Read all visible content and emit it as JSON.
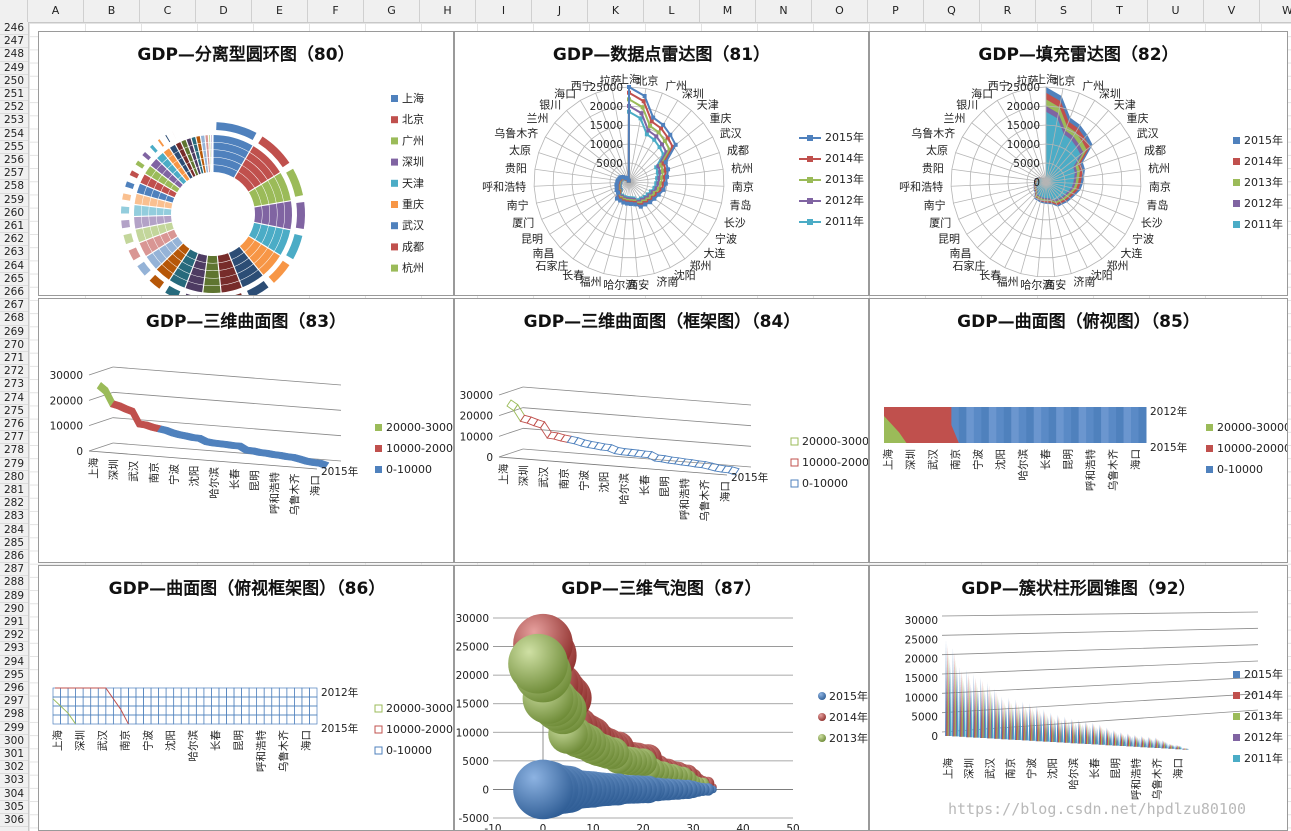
{
  "sheet": {
    "columns": [
      "A",
      "B",
      "C",
      "D",
      "E",
      "F",
      "G",
      "H",
      "I",
      "J",
      "K",
      "L",
      "M",
      "N",
      "O",
      "P",
      "Q",
      "R",
      "S",
      "T",
      "U",
      "V",
      "W"
    ],
    "rows_start": 246,
    "rows_end": 306
  },
  "watermark": "https://blog.csdn.net/hpdlzu80100",
  "colors": {
    "s2015": "#4f81bd",
    "s2014": "#c0504d",
    "s2013": "#9bbb59",
    "s2012": "#8064a2",
    "s2011": "#4bacc6",
    "s6": "#f79646"
  },
  "chart_data": [
    {
      "id": "c80",
      "type": "pie",
      "subtype": "separated-doughnut",
      "title": "GDP—分离型圆环图（80）",
      "legend_position": "right",
      "legend": [
        "上海",
        "北京",
        "广州",
        "深圳",
        "天津",
        "重庆",
        "武汉",
        "成都",
        "杭州"
      ]
    },
    {
      "id": "c81",
      "type": "line",
      "subtype": "radar-markers",
      "title": "GDP—数据点雷达图（81）",
      "categories": [
        "上海",
        "北京",
        "广州",
        "深圳",
        "天津",
        "重庆",
        "武汉",
        "成都",
        "杭州",
        "南京",
        "青岛",
        "长沙",
        "宁波",
        "大连",
        "郑州",
        "沈阳",
        "济南",
        "西安",
        "哈尔滨",
        "福州",
        "长春",
        "石家庄",
        "南昌",
        "昆明",
        "厦门",
        "南宁",
        "呼和浩特",
        "贵阳",
        "太原",
        "乌鲁木齐",
        "兰州",
        "银川",
        "海口",
        "西宁",
        "拉萨"
      ],
      "axis_ticks": [
        "0",
        "5000",
        "10000",
        "15000",
        "20000",
        "25000"
      ],
      "legend_position": "right",
      "series": [
        {
          "name": "2015年"
        },
        {
          "name": "2014年"
        },
        {
          "name": "2013年"
        },
        {
          "name": "2012年"
        },
        {
          "name": "2011年"
        }
      ]
    },
    {
      "id": "c82",
      "type": "area",
      "subtype": "filled-radar",
      "title": "GDP—填充雷达图（82）",
      "axis_ticks": [
        "0",
        "5000",
        "10000",
        "15000",
        "20000",
        "25000"
      ],
      "legend_position": "right",
      "series": [
        {
          "name": "2015年"
        },
        {
          "name": "2014年"
        },
        {
          "name": "2013年"
        },
        {
          "name": "2012年"
        },
        {
          "name": "2011年"
        }
      ]
    },
    {
      "id": "c83",
      "type": "area",
      "subtype": "3d-surface",
      "title": "GDP—三维曲面图（83）",
      "y_ticks": [
        "0",
        "10000",
        "20000",
        "30000"
      ],
      "x_labels": [
        "上海",
        "深圳",
        "武汉",
        "南京",
        "宁波",
        "沈阳",
        "哈尔滨",
        "长春",
        "昆明",
        "呼和浩特",
        "乌鲁木齐",
        "海口"
      ],
      "depth_label": "2015年",
      "bands": [
        "20000-30000",
        "10000-20000",
        "0-10000"
      ],
      "legend_position": "right"
    },
    {
      "id": "c84",
      "type": "area",
      "subtype": "3d-surface-wireframe",
      "title": "GDP—三维曲面图（框架图）（84）",
      "y_ticks": [
        "0",
        "10000",
        "20000",
        "30000"
      ],
      "x_labels": [
        "上海",
        "深圳",
        "武汉",
        "南京",
        "宁波",
        "沈阳",
        "哈尔滨",
        "长春",
        "昆明",
        "呼和浩特",
        "乌鲁木齐",
        "海口"
      ],
      "depth_label": "2015年",
      "bands": [
        "20000-30000",
        "10000-20000",
        "0-10000"
      ],
      "legend_position": "right"
    },
    {
      "id": "c85",
      "type": "heatmap",
      "subtype": "contour-top-view",
      "title": "GDP—曲面图（俯视图）（85）",
      "x_labels": [
        "上海",
        "深圳",
        "武汉",
        "南京",
        "宁波",
        "沈阳",
        "哈尔滨",
        "长春",
        "昆明",
        "呼和浩特",
        "乌鲁木齐",
        "海口"
      ],
      "y_labels": [
        "2012年",
        "2015年"
      ],
      "bands": [
        "20000-30000",
        "10000-20000",
        "0-10000"
      ],
      "legend_position": "right"
    },
    {
      "id": "c86",
      "type": "heatmap",
      "subtype": "wireframe-contour-top-view",
      "title": "GDP—曲面图（俯视框架图）（86）",
      "x_labels": [
        "上海",
        "深圳",
        "武汉",
        "南京",
        "宁波",
        "沈阳",
        "哈尔滨",
        "长春",
        "昆明",
        "呼和浩特",
        "乌鲁木齐",
        "海口"
      ],
      "y_labels": [
        "2012年",
        "2015年"
      ],
      "bands": [
        "20000-30000",
        "10000-20000",
        "0-10000"
      ],
      "legend_position": "right"
    },
    {
      "id": "c87",
      "type": "scatter",
      "subtype": "3d-bubble",
      "title": "GDP—三维气泡图（87）",
      "x_ticks": [
        "-10",
        "0",
        "10",
        "20",
        "30",
        "40",
        "50"
      ],
      "y_ticks": [
        "-5000",
        "0",
        "5000",
        "10000",
        "15000",
        "20000",
        "25000",
        "30000"
      ],
      "xlim": [
        -10,
        50
      ],
      "ylim": [
        -5000,
        30000
      ],
      "legend_position": "right",
      "series": [
        {
          "name": "2015年"
        },
        {
          "name": "2014年"
        },
        {
          "name": "2013年"
        }
      ]
    },
    {
      "id": "c92",
      "type": "bar",
      "subtype": "clustered-cone",
      "title": "GDP—簇状柱形圆锥图（92）",
      "y_ticks": [
        "0",
        "5000",
        "10000",
        "15000",
        "20000",
        "25000",
        "30000"
      ],
      "x_labels": [
        "上海",
        "深圳",
        "武汉",
        "南京",
        "宁波",
        "沈阳",
        "哈尔滨",
        "长春",
        "昆明",
        "呼和浩特",
        "乌鲁木齐",
        "海口"
      ],
      "legend_position": "right",
      "series": [
        {
          "name": "2015年"
        },
        {
          "name": "2014年"
        },
        {
          "name": "2013年"
        },
        {
          "name": "2012年"
        },
        {
          "name": "2011年"
        }
      ],
      "approx_values_2015": [
        25000,
        23000,
        18100,
        17500,
        16500,
        15700,
        14500,
        13000,
        11000,
        10900,
        10500,
        10100,
        9700,
        9200,
        8400,
        7600,
        7200,
        6800,
        6400,
        6200,
        5900,
        5700,
        5300,
        4600,
        4100,
        3600,
        3400,
        3100,
        2900,
        2800,
        2700,
        2100,
        1300,
        1100,
        400
      ]
    }
  ]
}
